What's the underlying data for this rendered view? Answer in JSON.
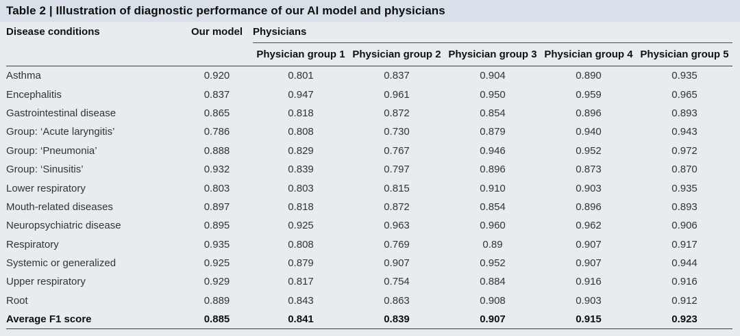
{
  "title": "Table 2 | Illustration of diagnostic performance of our AI model and physicians",
  "colors": {
    "title_band_bg": "#d9e0e9",
    "body_bg": "#e8ecf0",
    "rule": "#3c3c3c",
    "text": "#333333"
  },
  "table": {
    "condition_header": "Disease conditions",
    "our_model_header": "Our model",
    "physicians_header": "Physicians",
    "group_headers": [
      "Physician group 1",
      "Physician group 2",
      "Physician group 3",
      "Physician group 4",
      "Physician group 5"
    ],
    "rows": [
      {
        "condition": "Asthma",
        "values": [
          "0.920",
          "0.801",
          "0.837",
          "0.904",
          "0.890",
          "0.935"
        ]
      },
      {
        "condition": "Encephalitis",
        "values": [
          "0.837",
          "0.947",
          "0.961",
          "0.950",
          "0.959",
          "0.965"
        ]
      },
      {
        "condition": "Gastrointestinal disease",
        "values": [
          "0.865",
          "0.818",
          "0.872",
          "0.854",
          "0.896",
          "0.893"
        ]
      },
      {
        "condition": "Group: ‘Acute laryngitis’",
        "values": [
          "0.786",
          "0.808",
          "0.730",
          "0.879",
          "0.940",
          "0.943"
        ]
      },
      {
        "condition": "Group: ‘Pneumonia’",
        "values": [
          "0.888",
          "0.829",
          "0.767",
          "0.946",
          "0.952",
          "0.972"
        ]
      },
      {
        "condition": "Group: ‘Sinusitis’",
        "values": [
          "0.932",
          "0.839",
          "0.797",
          "0.896",
          "0.873",
          "0.870"
        ]
      },
      {
        "condition": "Lower respiratory",
        "values": [
          "0.803",
          "0.803",
          "0.815",
          "0.910",
          "0.903",
          "0.935"
        ]
      },
      {
        "condition": "Mouth-related diseases",
        "values": [
          "0.897",
          "0.818",
          "0.872",
          "0.854",
          "0.896",
          "0.893"
        ]
      },
      {
        "condition": "Neuropsychiatric disease",
        "values": [
          "0.895",
          "0.925",
          "0.963",
          "0.960",
          "0.962",
          "0.906"
        ]
      },
      {
        "condition": "Respiratory",
        "values": [
          "0.935",
          "0.808",
          "0.769",
          "0.89",
          "0.907",
          "0.917"
        ]
      },
      {
        "condition": "Systemic or generalized",
        "values": [
          "0.925",
          "0.879",
          "0.907",
          "0.952",
          "0.907",
          "0.944"
        ]
      },
      {
        "condition": "Upper respiratory",
        "values": [
          "0.929",
          "0.817",
          "0.754",
          "0.884",
          "0.916",
          "0.916"
        ]
      },
      {
        "condition": "Root",
        "values": [
          "0.889",
          "0.843",
          "0.863",
          "0.908",
          "0.903",
          "0.912"
        ]
      }
    ],
    "average_row": {
      "condition": "Average F1 score",
      "values": [
        "0.885",
        "0.841",
        "0.839",
        "0.907",
        "0.915",
        "0.923"
      ]
    }
  }
}
